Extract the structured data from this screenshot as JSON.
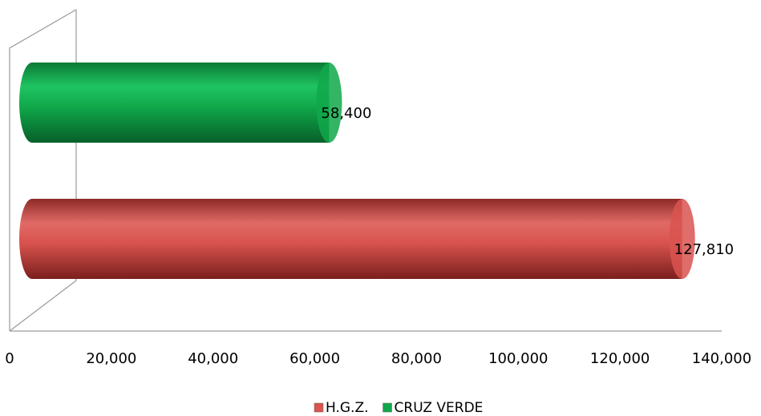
{
  "chart_data": {
    "type": "bar",
    "orientation": "horizontal",
    "categories": [
      null
    ],
    "series": [
      {
        "name": "H.G.Z.",
        "color": "#d9534f",
        "values": [
          127810
        ],
        "value_labels": [
          "127,810"
        ]
      },
      {
        "name": "CRUZ VERDE",
        "color": "#10a84a",
        "values": [
          58400
        ],
        "value_labels": [
          "58,400"
        ]
      }
    ],
    "xlim": [
      0,
      140000
    ],
    "xticks": [
      0,
      {
        "value": 20000,
        "label": "20,000"
      },
      {
        "value": 40000,
        "label": "40,000"
      },
      {
        "value": 60000,
        "label": "60,000"
      },
      {
        "value": 80000,
        "label": "80,000"
      },
      {
        "value": 100000,
        "label": "100,000"
      },
      {
        "value": 120000,
        "label": "120,000"
      },
      {
        "value": 140000,
        "label": "140,000"
      }
    ],
    "grid": false,
    "legend": "bottom"
  }
}
